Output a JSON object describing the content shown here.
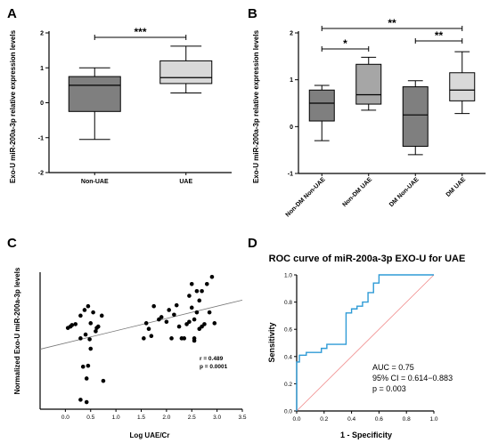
{
  "panels": {
    "a": "A",
    "b": "B",
    "c": "C",
    "d": "D"
  },
  "chart_data": [
    {
      "type": "box",
      "panel": "A",
      "ylabel": "Exo-U miR-200a-3p relative expression levels",
      "ylim": [
        -2,
        2
      ],
      "yticks": [
        "-2",
        "-1",
        "0",
        "1",
        "2"
      ],
      "categories": [
        "Non-UAE",
        "UAE"
      ],
      "boxes": [
        {
          "label": "Non-UAE",
          "min": -1.05,
          "q1": -0.25,
          "median": 0.5,
          "q3": 0.75,
          "max": 1.0,
          "color": "#7f7f7f"
        },
        {
          "label": "UAE",
          "min": 0.28,
          "q1": 0.55,
          "median": 0.72,
          "q3": 1.2,
          "max": 1.62,
          "color": "#d9d9d9"
        }
      ],
      "significance": [
        {
          "from": 0,
          "to": 1,
          "label": "***"
        }
      ]
    },
    {
      "type": "box",
      "panel": "B",
      "ylabel": "Exo-U miR-200a-3p relative expression levels",
      "ylim": [
        -1,
        2
      ],
      "yticks": [
        "-1",
        "0",
        "1",
        "2"
      ],
      "categories": [
        "Non-DM Non-UAE",
        "Non-DM UAE",
        "DM Non-UAE",
        "DM UAE"
      ],
      "boxes": [
        {
          "label": "Non-DM Non-UAE",
          "min": -0.3,
          "q1": 0.12,
          "median": 0.5,
          "q3": 0.78,
          "max": 0.88,
          "color": "#7f7f7f"
        },
        {
          "label": "Non-DM UAE",
          "min": 0.35,
          "q1": 0.48,
          "median": 0.68,
          "q3": 1.33,
          "max": 1.48,
          "color": "#a6a6a6"
        },
        {
          "label": "DM Non-UAE",
          "min": -0.6,
          "q1": -0.42,
          "median": 0.25,
          "q3": 0.85,
          "max": 0.98,
          "color": "#7f7f7f"
        },
        {
          "label": "DM UAE",
          "min": 0.28,
          "q1": 0.55,
          "median": 0.78,
          "q3": 1.15,
          "max": 1.6,
          "color": "#d9d9d9"
        }
      ],
      "significance": [
        {
          "from": 0,
          "to": 1,
          "label": "*"
        },
        {
          "from": 2,
          "to": 3,
          "label": "**"
        },
        {
          "from": 0,
          "to": 3,
          "label": "**"
        }
      ]
    },
    {
      "type": "scatter",
      "panel": "C",
      "xlabel": "Log UAE/Cr",
      "ylabel": "Normalized Exo-U miR-200a-3p levels",
      "xlim": [
        -0.5,
        3.5
      ],
      "ylim": [
        -1.2,
        1.7
      ],
      "xticks": [
        "0.0",
        "0.5",
        "1.0",
        "1.5",
        "2.0",
        "2.5",
        "3.0",
        "3.5"
      ],
      "stats": {
        "r": "r = 0.489",
        "p": "p = 0.0001"
      },
      "fit_line": {
        "intercept": 0.2,
        "slope": 0.26
      },
      "points": [
        [
          0.05,
          0.52
        ],
        [
          0.1,
          0.55
        ],
        [
          0.13,
          0.58
        ],
        [
          0.3,
          0.78
        ],
        [
          0.38,
          0.9
        ],
        [
          0.45,
          0.98
        ],
        [
          0.5,
          0.62
        ],
        [
          0.55,
          0.85
        ],
        [
          0.62,
          0.52
        ],
        [
          0.72,
          0.78
        ],
        [
          0.4,
          0.38
        ],
        [
          0.48,
          0.28
        ],
        [
          0.3,
          0.3
        ],
        [
          0.5,
          0.08
        ],
        [
          0.6,
          0.45
        ],
        [
          0.65,
          0.55
        ],
        [
          0.35,
          -0.3
        ],
        [
          0.45,
          -0.28
        ],
        [
          0.42,
          -0.55
        ],
        [
          0.75,
          -0.6
        ],
        [
          0.3,
          -1.0
        ],
        [
          0.42,
          -1.05
        ],
        [
          0.2,
          0.6
        ],
        [
          1.55,
          0.3
        ],
        [
          1.6,
          0.62
        ],
        [
          1.65,
          0.5
        ],
        [
          1.7,
          0.35
        ],
        [
          1.75,
          0.98
        ],
        [
          1.85,
          0.7
        ],
        [
          1.9,
          0.75
        ],
        [
          2.0,
          0.65
        ],
        [
          2.05,
          0.9
        ],
        [
          2.1,
          0.3
        ],
        [
          2.15,
          0.8
        ],
        [
          2.2,
          1.0
        ],
        [
          2.25,
          0.55
        ],
        [
          2.3,
          0.3
        ],
        [
          2.35,
          0.3
        ],
        [
          2.4,
          0.6
        ],
        [
          2.45,
          1.2
        ],
        [
          2.5,
          1.45
        ],
        [
          2.5,
          0.95
        ],
        [
          2.55,
          0.7
        ],
        [
          2.55,
          0.3
        ],
        [
          2.6,
          1.3
        ],
        [
          2.6,
          0.85
        ],
        [
          2.65,
          1.1
        ],
        [
          2.65,
          0.5
        ],
        [
          2.7,
          1.3
        ],
        [
          2.75,
          0.6
        ],
        [
          2.8,
          1.45
        ],
        [
          2.85,
          0.85
        ],
        [
          2.9,
          1.6
        ],
        [
          2.95,
          0.62
        ],
        [
          2.45,
          0.65
        ],
        [
          2.55,
          0.25
        ],
        [
          2.7,
          0.55
        ]
      ]
    },
    {
      "type": "line",
      "panel": "D",
      "title": "ROC curve of miR-200a-3p EXO-U for UAE",
      "xlabel": "1 - Specificity",
      "ylabel": "Sensitivity",
      "xlim": [
        0,
        1
      ],
      "ylim": [
        0,
        1
      ],
      "xticks": [
        "0.0",
        "0.2",
        "0.4",
        "0.6",
        "0.8",
        "1.0"
      ],
      "yticks": [
        "0.0",
        "0.2",
        "0.4",
        "0.6",
        "0.8",
        "1.0"
      ],
      "roc": [
        [
          0,
          0
        ],
        [
          0,
          0.36
        ],
        [
          0.02,
          0.36
        ],
        [
          0.02,
          0.41
        ],
        [
          0.07,
          0.41
        ],
        [
          0.07,
          0.43
        ],
        [
          0.18,
          0.43
        ],
        [
          0.18,
          0.46
        ],
        [
          0.22,
          0.46
        ],
        [
          0.22,
          0.49
        ],
        [
          0.36,
          0.49
        ],
        [
          0.36,
          0.72
        ],
        [
          0.4,
          0.72
        ],
        [
          0.4,
          0.75
        ],
        [
          0.44,
          0.75
        ],
        [
          0.44,
          0.77
        ],
        [
          0.48,
          0.77
        ],
        [
          0.48,
          0.8
        ],
        [
          0.52,
          0.8
        ],
        [
          0.52,
          0.87
        ],
        [
          0.56,
          0.87
        ],
        [
          0.56,
          0.94
        ],
        [
          0.6,
          0.94
        ],
        [
          0.6,
          1.0
        ],
        [
          1.0,
          1.0
        ]
      ],
      "reference": [
        [
          0,
          0
        ],
        [
          1,
          1
        ]
      ],
      "colors": {
        "roc": "#2e9bd6",
        "reference": "#f08a8a"
      },
      "annotations": [
        "AUC = 0.75",
        "95% CI = 0.614−0.883",
        "p = 0.003"
      ]
    }
  ]
}
